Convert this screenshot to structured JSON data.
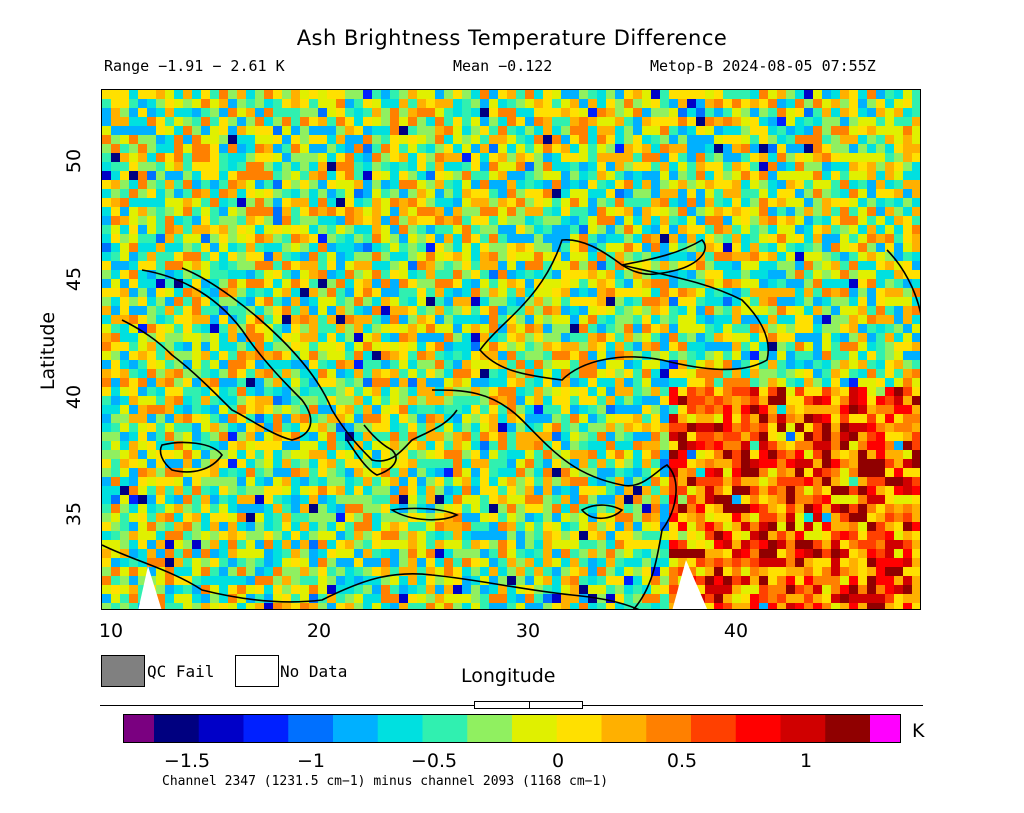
{
  "title": "Ash Brightness Temperature Difference",
  "header": {
    "range": "Range −1.91 − 2.61 K",
    "mean": "Mean −0.122",
    "satellite": "Metop-B 2024-08-05 07:55Z"
  },
  "map": {
    "lon_range": [
      10,
      49
    ],
    "lat_range": [
      30.7,
      53
    ],
    "x_ticks": [
      "10",
      "20",
      "30",
      "40"
    ],
    "y_ticks": [
      "35",
      "40",
      "45",
      "50"
    ],
    "xlabel": "Longitude",
    "ylabel": "Latitude"
  },
  "legend": {
    "qc_fail_label": "QC Fail",
    "qc_fail_color": "#808080",
    "no_data_label": "No Data",
    "no_data_color": "#ffffff"
  },
  "colorbar": {
    "range": [
      -1.8,
      1.4
    ],
    "ticks": [
      "−1.5",
      "−1",
      "−0.5",
      "0",
      "0.5",
      "1"
    ],
    "unit": "K",
    "caption": "Channel 2347 (1231.5 cm−1) minus channel 2093 (1168 cm−1)",
    "colors": [
      "#7a0080",
      "#000080",
      "#0000c8",
      "#0020ff",
      "#0070ff",
      "#00b0ff",
      "#00e0e0",
      "#30f0b0",
      "#90f060",
      "#e0f000",
      "#ffe000",
      "#ffb000",
      "#ff8000",
      "#ff4000",
      "#ff0000",
      "#d00000",
      "#900000",
      "#ff00ff"
    ]
  }
}
